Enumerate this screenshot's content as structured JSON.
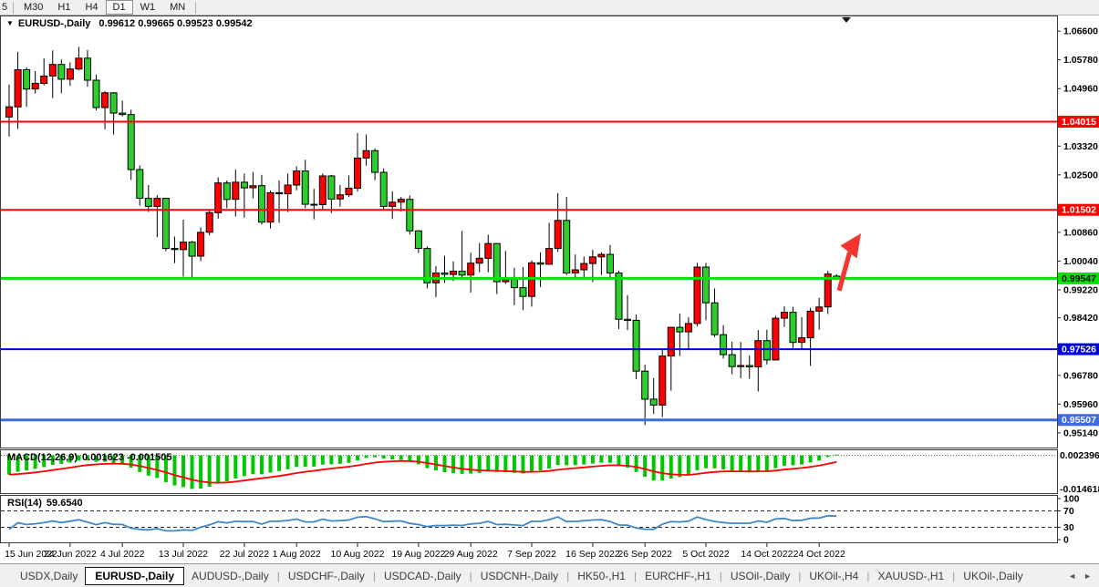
{
  "toolbar": {
    "clipped_button": "5",
    "timeframes": [
      "M30",
      "H1",
      "H4",
      "D1",
      "W1",
      "MN"
    ],
    "active": "D1"
  },
  "header": {
    "symbol_label": "EURUSD-,Daily",
    "ohlc_text": "0.99612 0.99665 0.99523 0.99542"
  },
  "icons": {
    "dropdown": "▼",
    "tab_scroll_left": "◄",
    "tab_scroll_right": "►",
    "tab_separator": "|"
  },
  "chart_data": {
    "type": "candlestick",
    "symbol": "EURUSD-",
    "period": "Daily",
    "current_bar": {
      "open": 0.99612,
      "high": 0.99665,
      "low": 0.99523,
      "close": 0.99542
    },
    "price_domain": [
      0.9472,
      1.0702
    ],
    "colors": {
      "up": "#FF0000",
      "down": "#2ECC2E",
      "wick": "#000000",
      "frame": "#3a3a3a"
    },
    "y_axis": {
      "ticks": [
        "1.06600",
        "1.05780",
        "1.04960",
        "1.03320",
        "1.02500",
        "1.00860",
        "1.00040",
        "0.99220",
        "0.98420",
        "0.96780",
        "0.95960",
        "0.95140"
      ]
    },
    "x_axis": {
      "ticks": [
        {
          "label": "15 Jun 2022",
          "index": 0
        },
        {
          "label": "24 Jun 2022",
          "index": 7
        },
        {
          "label": "4 Jul 2022",
          "index": 13
        },
        {
          "label": "13 Jul 2022",
          "index": 20
        },
        {
          "label": "22 Jul 2022",
          "index": 27
        },
        {
          "label": "1 Aug 2022",
          "index": 33
        },
        {
          "label": "10 Aug 2022",
          "index": 40
        },
        {
          "label": "19 Aug 2022",
          "index": 47
        },
        {
          "label": "29 Aug 2022",
          "index": 53
        },
        {
          "label": "7 Sep 2022",
          "index": 60
        },
        {
          "label": "16 Sep 2022",
          "index": 67
        },
        {
          "label": "26 Sep 2022",
          "index": 73
        },
        {
          "label": "5 Oct 2022",
          "index": 80
        },
        {
          "label": "14 Oct 2022",
          "index": 87
        },
        {
          "label": "24 Oct 2022",
          "index": 93
        }
      ]
    },
    "hlines": [
      {
        "price": 1.04015,
        "label": "1.04015",
        "color": "#FF0000",
        "text_color": "#FFFFFF",
        "width": 2
      },
      {
        "price": 1.01502,
        "label": "1.01502",
        "color": "#FF0000",
        "text_color": "#FFFFFF",
        "width": 2
      },
      {
        "price": 0.99547,
        "label": "0.99547",
        "color": "#00E400",
        "text_color": "#000000",
        "width": 3
      },
      {
        "price": 0.97526,
        "label": "0.97526",
        "color": "#0000E0",
        "text_color": "#FFFFFF",
        "width": 2
      },
      {
        "price": 0.95507,
        "label": "0.95507",
        "color": "#4169E1",
        "text_color": "#FFFFFF",
        "width": 3
      }
    ],
    "candles": [
      [
        1.0415,
        1.0508,
        1.0359,
        1.0444
      ],
      [
        1.0444,
        1.0601,
        1.0381,
        1.055
      ],
      [
        1.055,
        1.0557,
        1.0444,
        1.0495
      ],
      [
        1.0495,
        1.0546,
        1.0482,
        1.0511
      ],
      [
        1.0511,
        1.0582,
        1.0505,
        1.0532
      ],
      [
        1.0532,
        1.0605,
        1.0469,
        1.0565
      ],
      [
        1.0565,
        1.0579,
        1.0483,
        1.0523
      ],
      [
        1.0523,
        1.0571,
        1.0504,
        1.0552
      ],
      [
        1.0552,
        1.0615,
        1.0548,
        1.0583
      ],
      [
        1.0583,
        1.0606,
        1.0502,
        1.052
      ],
      [
        1.052,
        1.0536,
        1.0434,
        1.0442
      ],
      [
        1.0442,
        1.0489,
        1.038,
        1.0484
      ],
      [
        1.0484,
        1.0486,
        1.0365,
        1.0426
      ],
      [
        1.0426,
        1.0462,
        1.0417,
        1.0422
      ],
      [
        1.0422,
        1.0436,
        1.0235,
        1.0265
      ],
      [
        1.0265,
        1.0277,
        1.0162,
        1.0183
      ],
      [
        1.0183,
        1.0221,
        1.0144,
        1.016
      ],
      [
        1.016,
        1.0192,
        1.0072,
        1.0183
      ],
      [
        1.0183,
        1.0184,
        1.0032,
        1.004
      ],
      [
        1.004,
        1.0074,
        0.9998,
        1.0037
      ],
      [
        1.0037,
        1.0122,
        0.996,
        1.0058
      ],
      [
        1.0058,
        1.0062,
        0.9952,
        1.0018
      ],
      [
        1.0018,
        1.01,
        1.0004,
        1.0086
      ],
      [
        1.0086,
        1.0149,
        1.0077,
        1.0142
      ],
      [
        1.0142,
        1.0243,
        1.0125,
        1.0227
      ],
      [
        1.0227,
        1.0234,
        1.0155,
        1.018
      ],
      [
        1.018,
        1.0265,
        1.0131,
        1.0229
      ],
      [
        1.0229,
        1.0254,
        1.0128,
        1.0213
      ],
      [
        1.0213,
        1.0258,
        1.0183,
        1.0219
      ],
      [
        1.0219,
        1.025,
        1.0108,
        1.0115
      ],
      [
        1.0115,
        1.0205,
        1.0097,
        1.0199
      ],
      [
        1.0199,
        1.0234,
        1.0113,
        1.0196
      ],
      [
        1.0196,
        1.0254,
        1.0144,
        1.0221
      ],
      [
        1.0221,
        1.0274,
        1.0206,
        1.0261
      ],
      [
        1.0261,
        1.0293,
        1.0155,
        1.0166
      ],
      [
        1.0166,
        1.021,
        1.0123,
        1.0165
      ],
      [
        1.0165,
        1.0254,
        1.0151,
        1.0247
      ],
      [
        1.0247,
        1.025,
        1.0141,
        1.0181
      ],
      [
        1.0181,
        1.0221,
        1.0159,
        1.0193
      ],
      [
        1.0193,
        1.0248,
        1.0187,
        1.0212
      ],
      [
        1.0212,
        1.0369,
        1.0202,
        1.0298
      ],
      [
        1.0298,
        1.0365,
        1.0276,
        1.0319
      ],
      [
        1.0319,
        1.0325,
        1.0235,
        1.0257
      ],
      [
        1.0257,
        1.0268,
        1.0152,
        1.016
      ],
      [
        1.016,
        1.0203,
        1.0124,
        1.0172
      ],
      [
        1.0172,
        1.0187,
        1.0145,
        1.018
      ],
      [
        1.018,
        1.0191,
        1.008,
        1.009
      ],
      [
        1.009,
        1.0092,
        1.0027,
        1.004
      ],
      [
        1.004,
        1.0046,
        0.9926,
        0.9942
      ],
      [
        0.9942,
        0.999,
        0.9901,
        0.997
      ],
      [
        0.997,
        1.0019,
        0.9942,
        0.9966
      ],
      [
        0.9966,
        1.0003,
        0.9947,
        0.9975
      ],
      [
        0.9975,
        1.009,
        0.9956,
        0.9964
      ],
      [
        0.9964,
        1.0028,
        0.9914,
        0.9998
      ],
      [
        0.9998,
        1.0055,
        0.9972,
        1.0012
      ],
      [
        1.0012,
        1.0079,
        0.9972,
        1.0054
      ],
      [
        1.0054,
        1.0055,
        0.991,
        0.9945
      ],
      [
        0.9945,
        1.0033,
        0.9939,
        0.9952
      ],
      [
        0.9952,
        0.9985,
        0.9878,
        0.9928
      ],
      [
        0.9928,
        0.9987,
        0.9864,
        0.9903
      ],
      [
        0.9903,
        1.0006,
        0.9874,
        0.9999
      ],
      [
        0.9999,
        1.0029,
        0.993,
        0.9995
      ],
      [
        0.9995,
        1.0113,
        0.9993,
        1.004
      ],
      [
        1.004,
        1.0198,
        1.003,
        1.012
      ],
      [
        1.012,
        1.0187,
        0.9964,
        0.997
      ],
      [
        0.997,
        1.0023,
        0.9955,
        0.9979
      ],
      [
        0.9979,
        1.0017,
        0.9955,
        0.9997
      ],
      [
        0.9997,
        1.0036,
        0.9944,
        1.0016
      ],
      [
        1.0016,
        1.0029,
        0.9964,
        1.0023
      ],
      [
        1.0023,
        1.005,
        0.9954,
        0.997
      ],
      [
        0.997,
        0.9976,
        0.981,
        0.9838
      ],
      [
        0.9838,
        0.9907,
        0.9807,
        0.9835
      ],
      [
        0.9835,
        0.9852,
        0.9667,
        0.969
      ],
      [
        0.969,
        0.9709,
        0.9536,
        0.961
      ],
      [
        0.961,
        0.967,
        0.9568,
        0.9593
      ],
      [
        0.9593,
        0.975,
        0.9559,
        0.9733
      ],
      [
        0.9733,
        0.9816,
        0.9634,
        0.9815
      ],
      [
        0.9815,
        0.9854,
        0.9733,
        0.9802
      ],
      [
        0.9802,
        0.9844,
        0.9752,
        0.9826
      ],
      [
        0.9826,
        0.9999,
        0.9818,
        0.9987
      ],
      [
        0.9987,
        0.9999,
        0.9835,
        0.9885
      ],
      [
        0.9885,
        0.9926,
        0.9787,
        0.9794
      ],
      [
        0.9794,
        0.9821,
        0.9726,
        0.9737
      ],
      [
        0.9737,
        0.9774,
        0.9681,
        0.9703
      ],
      [
        0.9703,
        0.9773,
        0.967,
        0.9706
      ],
      [
        0.9706,
        0.9735,
        0.9668,
        0.9702
      ],
      [
        0.9702,
        0.9807,
        0.9632,
        0.9777
      ],
      [
        0.9777,
        0.9808,
        0.9709,
        0.9722
      ],
      [
        0.9722,
        0.9848,
        0.9721,
        0.9841
      ],
      [
        0.9841,
        0.9875,
        0.9816,
        0.9858
      ],
      [
        0.9858,
        0.9873,
        0.9756,
        0.9772
      ],
      [
        0.9772,
        0.9844,
        0.9754,
        0.9785
      ],
      [
        0.9785,
        0.9871,
        0.9705,
        0.9861
      ],
      [
        0.9861,
        0.9899,
        0.9808,
        0.9873
      ],
      [
        0.9873,
        0.9976,
        0.9853,
        0.9967
      ],
      [
        0.99612,
        0.99665,
        0.99523,
        0.99542
      ]
    ],
    "indicators": {
      "macd": {
        "label": "MACD(12,26,9)",
        "values_text": "0.001623 -0.001505",
        "fast": 12,
        "slow": 26,
        "signal": 9,
        "axis_max_label": "0.002396",
        "axis_min_label": "-0.014618",
        "histogram_color": "#00C800",
        "signal_color": "#FF0000"
      },
      "rsi": {
        "label": "RSI(14)",
        "value_text": "59.6540",
        "period": 14,
        "axis_labels": [
          "100",
          "70",
          "30",
          "0"
        ],
        "levels": [
          70,
          30
        ],
        "line_color": "#4187C7"
      }
    },
    "annotations": [
      {
        "type": "arrow-up",
        "color": "#F5352F"
      }
    ]
  },
  "tabs": {
    "items": [
      "USDX,Daily",
      "EURUSD-,Daily",
      "AUDUSD-,Daily",
      "USDCHF-,Daily",
      "USDCAD-,Daily",
      "USDCNH-,Daily",
      "HK50-,H1",
      "EURCHF-,H1",
      "USOil-,Daily",
      "UKOil-,H4",
      "XAUUSD-,H1",
      "UKOil-,Daily"
    ],
    "active_index": 1
  }
}
